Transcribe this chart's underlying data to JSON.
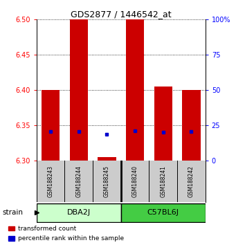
{
  "title": "GDS2877 / 1446542_at",
  "samples": [
    "GSM188243",
    "GSM188244",
    "GSM188245",
    "GSM188240",
    "GSM188241",
    "GSM188242"
  ],
  "bar_bottoms": [
    6.3,
    6.3,
    6.3,
    6.3,
    6.3,
    6.3
  ],
  "bar_tops": [
    6.4,
    6.5,
    6.305,
    6.5,
    6.405,
    6.4
  ],
  "blue_dots_y": [
    6.341,
    6.341,
    6.337,
    6.342,
    6.34,
    6.341
  ],
  "bar_color": "#cc0000",
  "dot_color": "#0000cc",
  "ylim_left": [
    6.3,
    6.5
  ],
  "ylim_right": [
    0,
    100
  ],
  "right_ticks": [
    0,
    25,
    50,
    75,
    100
  ],
  "right_tick_labels": [
    "0",
    "25",
    "50",
    "75",
    "100%"
  ],
  "left_ticks": [
    6.3,
    6.35,
    6.4,
    6.45,
    6.5
  ],
  "groups": [
    {
      "label": "DBA2J",
      "indices": [
        0,
        1,
        2
      ],
      "color_light": "#ccffcc",
      "color_dark": "#44cc44"
    },
    {
      "label": "C57BL6J",
      "indices": [
        3,
        4,
        5
      ],
      "color_light": "#44cc44",
      "color_dark": "#44cc44"
    }
  ],
  "strain_label": "strain",
  "legend_items": [
    {
      "color": "#cc0000",
      "label": "transformed count"
    },
    {
      "color": "#0000cc",
      "label": "percentile rank within the sample"
    }
  ],
  "bar_width": 0.65,
  "background_color": "#ffffff",
  "sample_box_color": "#cccccc",
  "fig_width": 3.41,
  "fig_height": 3.54,
  "dpi": 100
}
